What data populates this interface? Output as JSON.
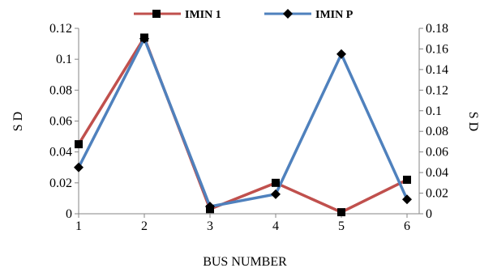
{
  "chart_data": {
    "type": "line",
    "categories": [
      "1",
      "2",
      "3",
      "4",
      "5",
      "6"
    ],
    "xlabel": "BUS NUMBER",
    "y1label": "S D",
    "y2label": "S D",
    "y1lim": [
      0,
      0.12
    ],
    "y2lim": [
      0,
      0.18
    ],
    "y1ticks": [
      "0",
      "0.02",
      "0.04",
      "0.06",
      "0.08",
      "0.1",
      "0.12"
    ],
    "y2ticks": [
      "0",
      "0.02",
      "0.04",
      "0.06",
      "0.08",
      "0.1",
      "0.12",
      "0.14",
      "0.16",
      "0.18"
    ],
    "grid": false,
    "legend_position": "top",
    "series": [
      {
        "name": "IMIN 1",
        "axis": "left",
        "values": [
          0.045,
          0.114,
          0.003,
          0.02,
          0.001,
          0.022
        ],
        "color": "#c0504d",
        "marker": "square"
      },
      {
        "name": "IMIN P",
        "axis": "right",
        "values": [
          0.045,
          0.17,
          0.007,
          0.019,
          0.155,
          0.014
        ],
        "color": "#4f81bd",
        "marker": "diamond"
      }
    ]
  }
}
